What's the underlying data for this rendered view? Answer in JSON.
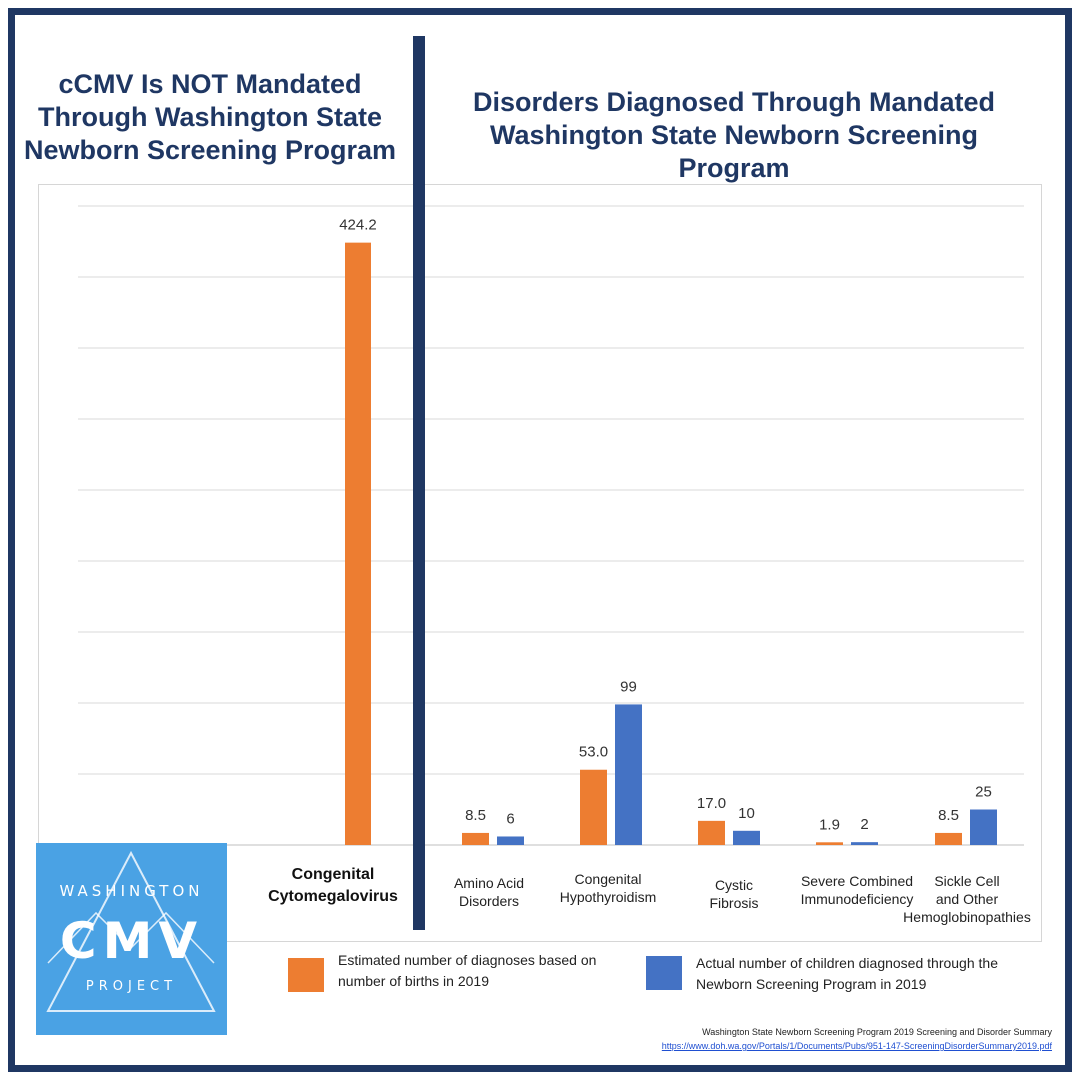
{
  "headings": {
    "left": [
      "cCMV Is NOT Mandated",
      "Through Washington State",
      "Newborn Screening Program"
    ],
    "right": [
      "Disorders Diagnosed Through Mandated",
      "Washington State Newborn Screening Program"
    ]
  },
  "chart_data": {
    "type": "bar",
    "categories": [
      [
        "Congenital",
        "Cytomegalovirus"
      ],
      [
        "Amino Acid",
        "Disorders"
      ],
      [
        "Congenital",
        "Hypothyroidism"
      ],
      [
        "Cystic",
        "Fibrosis"
      ],
      [
        "Severe Combined",
        "Immunodeficiency"
      ],
      [
        "Sickle Cell",
        "and Other",
        "Hemoglobinopathies"
      ]
    ],
    "series": [
      {
        "name": "Estimated number of diagnoses based on number of births in 2019",
        "color": "#ed7d31",
        "values": [
          424.2,
          8.5,
          53.0,
          17.0,
          1.9,
          8.5
        ],
        "labels": [
          "424.2",
          "8.5",
          "53.0",
          "17.0",
          "1.9",
          "8.5"
        ]
      },
      {
        "name": "Actual number of children diagnosed through the Newborn Screening Program in 2019",
        "color": "#4472c4",
        "values": [
          null,
          6,
          99,
          10,
          2,
          25
        ],
        "labels": [
          null,
          "6",
          "99",
          "10",
          "2",
          "25"
        ]
      }
    ],
    "ylim": [
      0,
      450
    ],
    "gridlines": true,
    "gridline_step": 50,
    "legend_position": "bottom"
  },
  "legend": {
    "estimated": [
      "Estimated number of diagnoses based on",
      "number of births in 2019"
    ],
    "actual": [
      "Actual number of children diagnosed through the",
      "Newborn Screening Program in 2019"
    ]
  },
  "logo": {
    "top": "WASHINGTON",
    "main": "CMV",
    "bottom": "PROJECT"
  },
  "source": {
    "title": "Washington State Newborn Screening Program 2019 Screening and Disorder Summary",
    "url": "https://www.doh.wa.gov/Portals/1/Documents/Pubs/951-147-ScreeningDisorderSummary2019.pdf"
  },
  "colors": {
    "frame": "#1f3763",
    "estimated": "#ed7d31",
    "actual": "#4472c4",
    "logo_background": "#4aa2e4"
  }
}
